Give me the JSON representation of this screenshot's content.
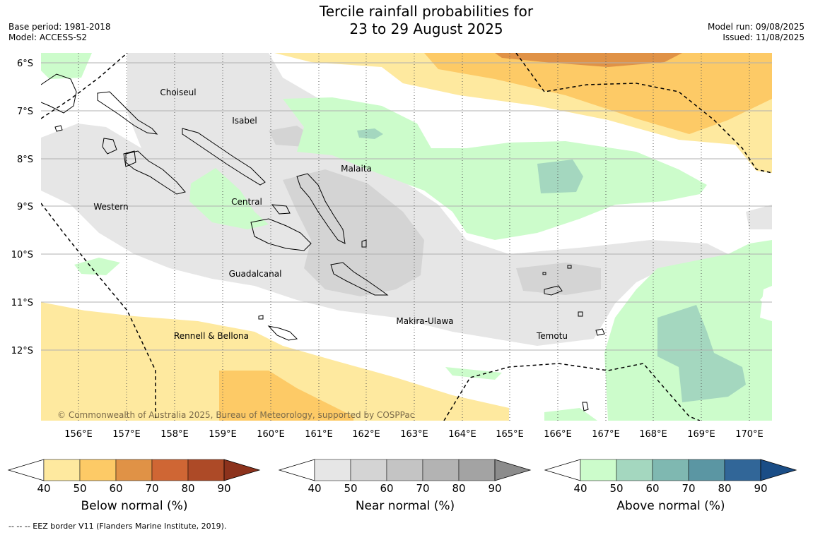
{
  "title": {
    "line1": "Tercile rainfall probabilities for",
    "line2": "23 to 29 August 2025"
  },
  "meta": {
    "base_period": "Base period: 1981-2018",
    "model": "Model: ACCESS-S2",
    "model_run": "Model run: 09/08/2025",
    "issued": "Issued: 11/08/2025"
  },
  "map": {
    "lat_labels": [
      "6°S",
      "7°S",
      "8°S",
      "9°S",
      "10°S",
      "11°S",
      "12°S"
    ],
    "lon_labels": [
      "156°E",
      "157°E",
      "158°E",
      "159°E",
      "160°E",
      "161°E",
      "162°E",
      "163°E",
      "164°E",
      "165°E",
      "166°E",
      "167°E",
      "168°E",
      "169°E",
      "170°E"
    ],
    "provinces": [
      "Choiseul",
      "Isabel",
      "Malaita",
      "Central",
      "Western",
      "Guadalcanal",
      "Makira-Ulawa",
      "Rennell & Bellona",
      "Temotu"
    ],
    "credit": "© Commonwealth of Australia 2025, Bureau of Meteorology, supported by COSPPac"
  },
  "legends": {
    "ticks": [
      "40",
      "50",
      "60",
      "70",
      "80",
      "90"
    ],
    "below": {
      "label": "Below normal (%)",
      "colors": [
        "#fee99f",
        "#fdca66",
        "#e09246",
        "#cf6634",
        "#ad4a27",
        "#8c321c"
      ]
    },
    "near": {
      "label": "Near normal (%)",
      "colors": [
        "#e6e6e6",
        "#d4d4d4",
        "#c4c4c4",
        "#b3b3b3",
        "#a3a3a3",
        "#8c8c8c"
      ]
    },
    "above": {
      "label": "Above normal (%)",
      "colors": [
        "#ccfccb",
        "#a4d7bf",
        "#7fb8b1",
        "#5b96a3",
        "#316698",
        "#1a4d86"
      ]
    }
  },
  "footer": "--  --  -- EEZ border V11 (Flanders Marine Institute, 2019)."
}
